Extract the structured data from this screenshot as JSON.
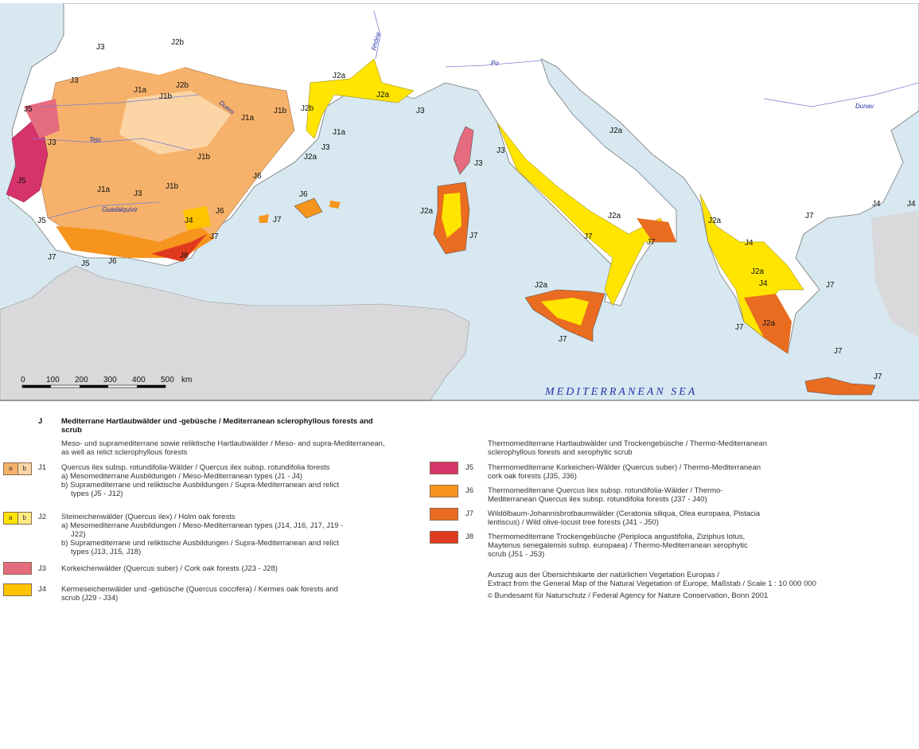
{
  "map": {
    "sea_label": "MEDITERRANEAN SEA",
    "rivers": [
      "Rhône",
      "Po",
      "Dunav",
      "Tejo",
      "Guadalquivir",
      "Duero"
    ],
    "region_labels": [
      "J3",
      "J2b",
      "J3",
      "J5",
      "J3",
      "J1a",
      "J1b",
      "J1a",
      "J2b",
      "J1b",
      "J1b",
      "J6",
      "J5",
      "J1a",
      "J3",
      "J1b",
      "J4",
      "J6",
      "J7",
      "J5",
      "J7",
      "J5",
      "J6",
      "J8",
      "J2b",
      "J2a",
      "J3",
      "J1a",
      "J3",
      "J2a",
      "J2a",
      "J3",
      "J3",
      "J6",
      "J7",
      "J2a",
      "J7",
      "J2a",
      "J7",
      "J7",
      "J2a",
      "J2a",
      "J7",
      "J4",
      "J2a",
      "J2a",
      "J4",
      "J7",
      "J7",
      "J2a",
      "J7",
      "J7",
      "J4",
      "J4",
      "J7"
    ],
    "colors": {
      "sea": "#d7e8f1",
      "land": "#ffffff",
      "africa": "#d9d9db",
      "border": "#9aa0b4",
      "river": "#7a7fd0",
      "J1a": "#f6b26b",
      "J1b": "#fbd5a5",
      "J2a": "#ffe500",
      "J2b": "#ffeb80",
      "J3": "#e56b7e",
      "J4": "#ffc400",
      "J5": "#d6336c",
      "J6": "#f7941d",
      "J7": "#ea6c20",
      "J8": "#e03a1e"
    },
    "scale_bar": {
      "ticks": [
        "0",
        "100",
        "200",
        "300",
        "400",
        "500"
      ],
      "unit": "km"
    }
  },
  "legend": {
    "group_code": "J",
    "group_title": "Mediterrane Hartlaubwälder und -gebüsche / Mediterranean sclerophyllous forests and scrub",
    "left_subtitle": "Meso- und supramediterrane sowie reliktische Hartlaubwälder / Meso- and supra-Mediterranean, as well as relict sclerophyllous forests",
    "right_subtitle": "Thermomediterrane Hartlaubwälder und Trockengebüsche / Thermo-Mediterranean sclerophyllous forests and xerophytic scrub",
    "items": [
      {
        "code": "J1",
        "swatch_a": "a",
        "swatch_b": "b",
        "lines": [
          "Quercus ilex subsp. rotundifolia-Wälder / Quercus ilex subsp. rotundifolia forests",
          "a) Mesomediterrane Ausbildungen / Meso-Mediterranean types (J1 - J4)",
          "b) Supramediterrane und reliktische Ausbildungen / Supra-Mediterranean and relict types (J5 - J12)"
        ]
      },
      {
        "code": "J2",
        "swatch_a": "a",
        "swatch_b": "b",
        "lines": [
          "Steineichenwälder (Quercus ilex) / Holm oak forests",
          "a) Mesomediterrane Ausbildungen / Meso-Mediterranean types (J14, J16, J17, J19 - J22)",
          "b) Supramediterrane und reliktische Ausbildungen / Supra-Mediterranean and relict types (J13, J15, J18)"
        ]
      },
      {
        "code": "J3",
        "lines": [
          "Korkeichenwälder (Quercus suber) / Cork oak forests (J23 - J28)"
        ]
      },
      {
        "code": "J4",
        "lines": [
          "Kermeseichenwälder und -gebüsche (Quercus coccifera) / Kermes oak forests and scrub (J29 - J34)"
        ]
      },
      {
        "code": "J5",
        "lines": [
          "Thermomediterrane Korkeichen-Wälder (Quercus suber) / Thermo-Mediterranean cork oak forests (J35, J36)"
        ]
      },
      {
        "code": "J6",
        "lines": [
          "Thermomediterrane Quercus ilex subsp. rotundifolia-Wälder / Thermo-Mediterranean Quercus ilex subsp. rotundifolia forests (J37 - J40)"
        ]
      },
      {
        "code": "J7",
        "lines": [
          "Wildölbaum-Johannisbrotbaumwälder (Ceratonia siliqua, Olea europaea, Pistacia lentiscus) / Wild olive-locust tree forests (J41 - J50)"
        ]
      },
      {
        "code": "J8",
        "lines": [
          "Thermomediterrane Trockengebüsche (Periploca angustifolia, Ziziphus lotus, Maytenus senegalensis subsp. europaea) / Thermo-Mediterranean xerophytic scrub (J51 - J53)"
        ]
      }
    ],
    "source_line1": "Auszug aus der Übersichtskarte der natürlichen Vegetation Europas /",
    "source_line2": "Extract from the General Map of the Natural Vegetation of Europe, Maßstab / Scale 1 : 10 000 000",
    "copyright_symbol": "©",
    "copyright": "Bundesamt für Naturschutz / Federal Agency for Nature Conservation, Bonn 2001"
  }
}
